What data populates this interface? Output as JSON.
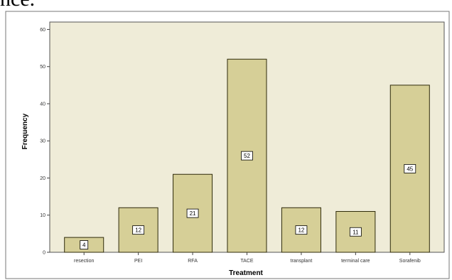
{
  "page": {
    "top_text_fragment": "ñce."
  },
  "chart_data": {
    "type": "bar",
    "title": "",
    "xlabel": "Treatment",
    "ylabel": "Frequency",
    "ylim": [
      0,
      62
    ],
    "yticks": [
      0,
      10,
      20,
      30,
      40,
      50,
      60
    ],
    "grid": false,
    "legend": "none",
    "categories": [
      "resection",
      "PEI",
      "RFA",
      "TACE",
      "transplant",
      "terminal care",
      "Sorafenib"
    ],
    "values": [
      4,
      12,
      21,
      52,
      12,
      11,
      45
    ],
    "data_labels": [
      "4",
      "12",
      "21",
      "52",
      "12",
      "11",
      "45"
    ],
    "colors": {
      "bar_fill": "#d6cf97",
      "bar_stroke": "#2e2a0a",
      "plot_background": "#efecd8",
      "frame": "#555555"
    }
  }
}
